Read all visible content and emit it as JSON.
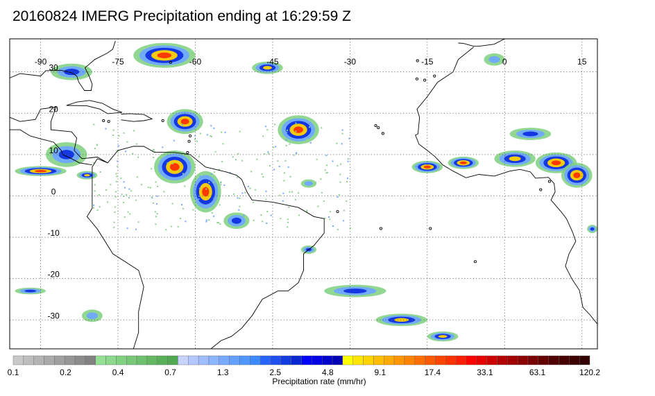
{
  "title": "20160824 IMERG Precipitation ending at 16:29:59 Z",
  "map": {
    "lon_range": [
      -96,
      18
    ],
    "lat_range": [
      -37,
      38
    ],
    "lon_ticks": [
      -90,
      -75,
      -60,
      -45,
      -30,
      -15,
      0,
      15
    ],
    "lat_ticks": [
      30,
      20,
      10,
      0,
      -10,
      -20,
      -30
    ],
    "grid": "dotted",
    "coastline_color": "#000000",
    "precip_areas": [
      {
        "lon": -66,
        "lat": 34,
        "rx": 6,
        "ry": 3,
        "peak": 4
      },
      {
        "lon": -46,
        "lat": 31,
        "rx": 3,
        "ry": 1.5,
        "peak": 3
      },
      {
        "lon": -84,
        "lat": 30,
        "rx": 4,
        "ry": 2,
        "peak": 2
      },
      {
        "lon": -62,
        "lat": 18,
        "rx": 3.5,
        "ry": 3,
        "peak": 4
      },
      {
        "lon": -40,
        "lat": 16,
        "rx": 4,
        "ry": 3.5,
        "peak": 4
      },
      {
        "lon": -85,
        "lat": 10,
        "rx": 4,
        "ry": 3,
        "peak": 2
      },
      {
        "lon": -90,
        "lat": 6,
        "rx": 5,
        "ry": 1.2,
        "peak": 4
      },
      {
        "lon": -81,
        "lat": 5,
        "rx": 2,
        "ry": 1,
        "peak": 3
      },
      {
        "lon": -64,
        "lat": 7,
        "rx": 4,
        "ry": 4,
        "peak": 4
      },
      {
        "lon": -58,
        "lat": 1,
        "rx": 3,
        "ry": 5,
        "peak": 4
      },
      {
        "lon": -52,
        "lat": -6,
        "rx": 2.5,
        "ry": 2,
        "peak": 2
      },
      {
        "lon": -38,
        "lat": -13,
        "rx": 1.5,
        "ry": 1,
        "peak": 2
      },
      {
        "lon": -38,
        "lat": 3,
        "rx": 1.5,
        "ry": 1,
        "peak": 1
      },
      {
        "lon": -15,
        "lat": 7,
        "rx": 3,
        "ry": 1.5,
        "peak": 4
      },
      {
        "lon": -8,
        "lat": 8,
        "rx": 3,
        "ry": 1.5,
        "peak": 4
      },
      {
        "lon": 2,
        "lat": 9,
        "rx": 4,
        "ry": 2,
        "peak": 3
      },
      {
        "lon": 10,
        "lat": 8,
        "rx": 4,
        "ry": 2.5,
        "peak": 4
      },
      {
        "lon": 14,
        "lat": 5,
        "rx": 3,
        "ry": 3,
        "peak": 4
      },
      {
        "lon": 5,
        "lat": 15,
        "rx": 4,
        "ry": 1.5,
        "peak": 2
      },
      {
        "lon": -2,
        "lat": 33,
        "rx": 2,
        "ry": 1.5,
        "peak": 1
      },
      {
        "lon": 17,
        "lat": -8,
        "rx": 1,
        "ry": 1,
        "peak": 2
      },
      {
        "lon": -92,
        "lat": -23,
        "rx": 3,
        "ry": 0.8,
        "peak": 2
      },
      {
        "lon": -80,
        "lat": -29,
        "rx": 2,
        "ry": 1.5,
        "peak": 1
      },
      {
        "lon": -29,
        "lat": -23,
        "rx": 6,
        "ry": 1.5,
        "peak": 2
      },
      {
        "lon": -20,
        "lat": -30,
        "rx": 5,
        "ry": 1.5,
        "peak": 3
      },
      {
        "lon": -12,
        "lat": -34,
        "rx": 3,
        "ry": 1.2,
        "peak": 3
      }
    ]
  },
  "colorbar": {
    "title": "Precipitation rate (mm/hr)",
    "tick_labels": [
      "0.1",
      "0.2",
      "0.4",
      "0.7",
      "1.3",
      "2.5",
      "4.8",
      "9.1",
      "17.4",
      "33.1",
      "63.1",
      "120.2"
    ],
    "colors": [
      "#c8c8c8",
      "#bebebe",
      "#b4b4b4",
      "#aaaaaa",
      "#a0a0a0",
      "#969696",
      "#8c8c8c",
      "#828282",
      "#96e096",
      "#8cd88c",
      "#82d082",
      "#78c878",
      "#6ec06e",
      "#64b864",
      "#5ab05a",
      "#50a850",
      "#c8d2ff",
      "#b4c8ff",
      "#a0beff",
      "#8cb4ff",
      "#78aaff",
      "#64a0ff",
      "#5096ff",
      "#3c8cff",
      "#2864ff",
      "#1e50f0",
      "#143ce0",
      "#0a28d0",
      "#0000ff",
      "#0000e6",
      "#0000cc",
      "#0000b4",
      "#ffff00",
      "#ffe600",
      "#ffd200",
      "#ffbe00",
      "#ffaa00",
      "#ff9600",
      "#ff8200",
      "#ff6e00",
      "#ff5a00",
      "#ff4600",
      "#ff3200",
      "#ff1e00",
      "#ff0000",
      "#e60000",
      "#cc0000",
      "#b40000",
      "#a00000",
      "#8c0000",
      "#780000",
      "#640000",
      "#500000",
      "#460000",
      "#3c0000",
      "#320000"
    ]
  }
}
